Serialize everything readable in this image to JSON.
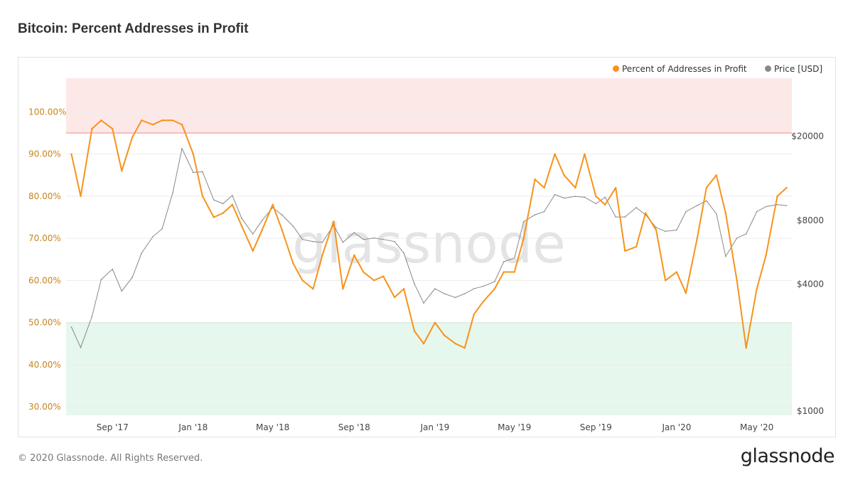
{
  "title": "Bitcoin: Percent Addresses in Profit",
  "footer": "© 2020 Glassnode. All Rights Reserved.",
  "logo": "glassnode",
  "watermark": "glassnode",
  "chart_data": {
    "type": "line",
    "title": "Bitcoin: Percent Addresses in Profit",
    "legend_position": "top-right",
    "grid": true,
    "xlim": [
      "2017-06-23",
      "2020-06-23"
    ],
    "x_ticks": [
      {
        "date": "2017-09-01",
        "label": "Sep '17"
      },
      {
        "date": "2018-01-01",
        "label": "Jan '18"
      },
      {
        "date": "2018-05-01",
        "label": "May '18"
      },
      {
        "date": "2018-09-01",
        "label": "Sep '18"
      },
      {
        "date": "2019-01-01",
        "label": "Jan '19"
      },
      {
        "date": "2019-05-01",
        "label": "May '19"
      },
      {
        "date": "2019-09-01",
        "label": "Sep '19"
      },
      {
        "date": "2020-01-01",
        "label": "Jan '20"
      },
      {
        "date": "2020-05-01",
        "label": "May '20"
      }
    ],
    "y_left": {
      "lim": [
        28,
        108
      ],
      "ticks": [
        30,
        40,
        50,
        60,
        70,
        80,
        90,
        100
      ],
      "tick_labels": [
        "30.00%",
        "40.00%",
        "50.00%",
        "60.00%",
        "70.00%",
        "80.00%",
        "90.00%",
        "100.00%"
      ],
      "color": "#c8841c"
    },
    "y_right": {
      "scale": "log",
      "lim": [
        955,
        37700
      ],
      "ticks": [
        1000,
        4000,
        8000,
        20000
      ],
      "tick_labels": [
        "$1000",
        "$4000",
        "$8000",
        "$20000"
      ]
    },
    "bands": [
      {
        "from": 95,
        "to": 108,
        "color": "#fde8e8",
        "line_color": "#e88a8a"
      },
      {
        "from": 28,
        "to": 50,
        "color": "#e6f7ee",
        "line_color": "#7cc8a0"
      }
    ],
    "dates": [
      "2017-07-01",
      "2017-07-15",
      "2017-08-01",
      "2017-08-15",
      "2017-09-01",
      "2017-09-15",
      "2017-10-01",
      "2017-10-15",
      "2017-11-01",
      "2017-11-15",
      "2017-12-01",
      "2017-12-15",
      "2018-01-01",
      "2018-01-15",
      "2018-02-01",
      "2018-02-15",
      "2018-03-01",
      "2018-03-15",
      "2018-04-01",
      "2018-04-15",
      "2018-05-01",
      "2018-05-15",
      "2018-06-01",
      "2018-06-15",
      "2018-07-01",
      "2018-07-15",
      "2018-08-01",
      "2018-08-15",
      "2018-09-01",
      "2018-09-15",
      "2018-10-01",
      "2018-10-15",
      "2018-11-01",
      "2018-11-15",
      "2018-12-01",
      "2018-12-15",
      "2019-01-01",
      "2019-01-15",
      "2019-02-01",
      "2019-02-15",
      "2019-03-01",
      "2019-03-15",
      "2019-04-01",
      "2019-04-15",
      "2019-05-01",
      "2019-05-15",
      "2019-06-01",
      "2019-06-15",
      "2019-07-01",
      "2019-07-15",
      "2019-08-01",
      "2019-08-15",
      "2019-09-01",
      "2019-09-15",
      "2019-10-01",
      "2019-10-15",
      "2019-11-01",
      "2019-11-15",
      "2019-12-01",
      "2019-12-15",
      "2020-01-01",
      "2020-01-15",
      "2020-02-01",
      "2020-02-15",
      "2020-03-01",
      "2020-03-15",
      "2020-04-01",
      "2020-04-15",
      "2020-05-01",
      "2020-05-15",
      "2020-06-01",
      "2020-06-15"
    ],
    "series": [
      {
        "name": "Percent of Addresses in Profit",
        "color": "#f7931a",
        "axis": "left",
        "values": [
          90,
          80,
          96,
          98,
          96,
          86,
          94,
          98,
          97,
          98,
          98,
          97,
          90,
          80,
          75,
          76,
          78,
          73,
          67,
          72,
          78,
          72,
          64,
          60,
          58,
          66,
          74,
          58,
          66,
          62,
          60,
          61,
          56,
          58,
          48,
          45,
          50,
          47,
          45,
          44,
          52,
          55,
          58,
          62,
          62,
          70,
          84,
          82,
          90,
          85,
          82,
          90,
          80,
          78,
          82,
          67,
          68,
          76,
          72,
          60,
          62,
          57,
          70,
          82,
          85,
          76,
          60,
          44,
          58,
          66,
          80,
          82
        ]
      },
      {
        "name": "Price [USD]",
        "color": "#888888",
        "axis": "right",
        "values": [
          2500,
          2000,
          2800,
          4200,
          4700,
          3700,
          4300,
          5600,
          6700,
          7300,
          10800,
          17500,
          13500,
          13600,
          10000,
          9600,
          10500,
          8200,
          6900,
          8000,
          9200,
          8500,
          7500,
          6500,
          6350,
          6300,
          7600,
          6300,
          7000,
          6500,
          6600,
          6500,
          6350,
          5600,
          4000,
          3250,
          3800,
          3600,
          3450,
          3600,
          3800,
          3900,
          4100,
          5100,
          5300,
          7900,
          8500,
          8800,
          10600,
          10200,
          10400,
          10300,
          9600,
          10300,
          8300,
          8300,
          9200,
          8500,
          7400,
          7100,
          7200,
          8800,
          9400,
          9900,
          8600,
          5400,
          6600,
          6900,
          8800,
          9300,
          9500,
          9400
        ]
      }
    ]
  }
}
